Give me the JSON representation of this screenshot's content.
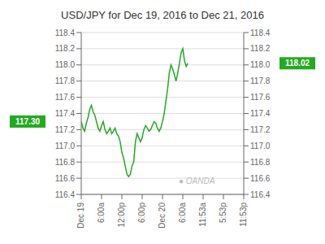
{
  "chart_data": {
    "type": "line",
    "title": "USD/JPY for Dec 19, 2016 to Dec 21, 2016",
    "x": [
      0,
      1,
      2,
      3,
      4,
      5,
      6,
      7,
      8,
      9,
      10,
      11,
      12,
      13,
      14,
      15,
      16,
      17,
      18,
      19,
      20,
      21,
      22,
      23,
      24,
      25,
      26,
      27,
      28,
      29,
      30,
      31,
      32,
      33,
      34,
      35,
      36,
      37,
      38,
      39,
      40,
      41,
      42,
      43,
      44,
      45,
      46,
      47,
      48,
      49,
      50,
      51,
      52,
      53,
      54,
      55,
      56,
      57,
      58,
      59,
      60,
      61,
      62,
      63
    ],
    "values": [
      117.3,
      117.22,
      117.18,
      117.28,
      117.35,
      117.45,
      117.5,
      117.42,
      117.38,
      117.3,
      117.22,
      117.18,
      117.25,
      117.3,
      117.2,
      117.15,
      117.18,
      117.22,
      117.15,
      117.18,
      117.22,
      117.15,
      117.12,
      117.05,
      116.92,
      116.85,
      116.75,
      116.65,
      116.62,
      116.65,
      116.75,
      116.8,
      117.05,
      117.15,
      117.1,
      117.05,
      117.1,
      117.2,
      117.25,
      117.22,
      117.18,
      117.2,
      117.25,
      117.3,
      117.28,
      117.22,
      117.18,
      117.22,
      117.3,
      117.4,
      117.55,
      117.7,
      117.9,
      118.0,
      117.95,
      117.88,
      117.8,
      117.9,
      118.02,
      118.15,
      118.2,
      118.05,
      117.98,
      118.02
    ],
    "color": "#22aa22",
    "xlim": [
      0,
      96
    ],
    "xticks": [
      {
        "value": 0,
        "label": "Dec 19"
      },
      {
        "value": 12,
        "label": "6:00a"
      },
      {
        "value": 24,
        "label": "12:00p"
      },
      {
        "value": 36,
        "label": "6:00p"
      },
      {
        "value": 48,
        "label": "Dec 20"
      },
      {
        "value": 60,
        "label": "6:00a"
      },
      {
        "value": 72,
        "label": "11:53a"
      },
      {
        "value": 84,
        "label": "5:53p"
      },
      {
        "value": 96,
        "label": "11:53p"
      }
    ],
    "ylim": [
      116.4,
      118.4
    ],
    "yticks": [
      116.4,
      116.6,
      116.8,
      {
        "value": 117,
        "label": "117.0"
      },
      117.2,
      117.4,
      117.6,
      117.8,
      {
        "value": 118,
        "label": "118.0"
      },
      118.2,
      118.4
    ],
    "y2lim": [
      116.4,
      118.4
    ],
    "y2ticks": [
      116.4,
      116.6,
      116.8,
      {
        "value": 117,
        "label": "117.0"
      },
      117.2,
      117.4,
      117.6,
      117.8,
      {
        "value": 118,
        "label": "118.0"
      },
      118.2,
      118.4
    ],
    "grid": true,
    "annotations": [
      {
        "text": "117.30",
        "value": 117.3,
        "axis": "y",
        "color": "#22aa22"
      },
      {
        "text": "118.02",
        "value": 118.02,
        "axis": "y2",
        "color": "#22aa22"
      },
      {
        "text": "● OANDA",
        "color": "#bbbbbb"
      }
    ]
  }
}
